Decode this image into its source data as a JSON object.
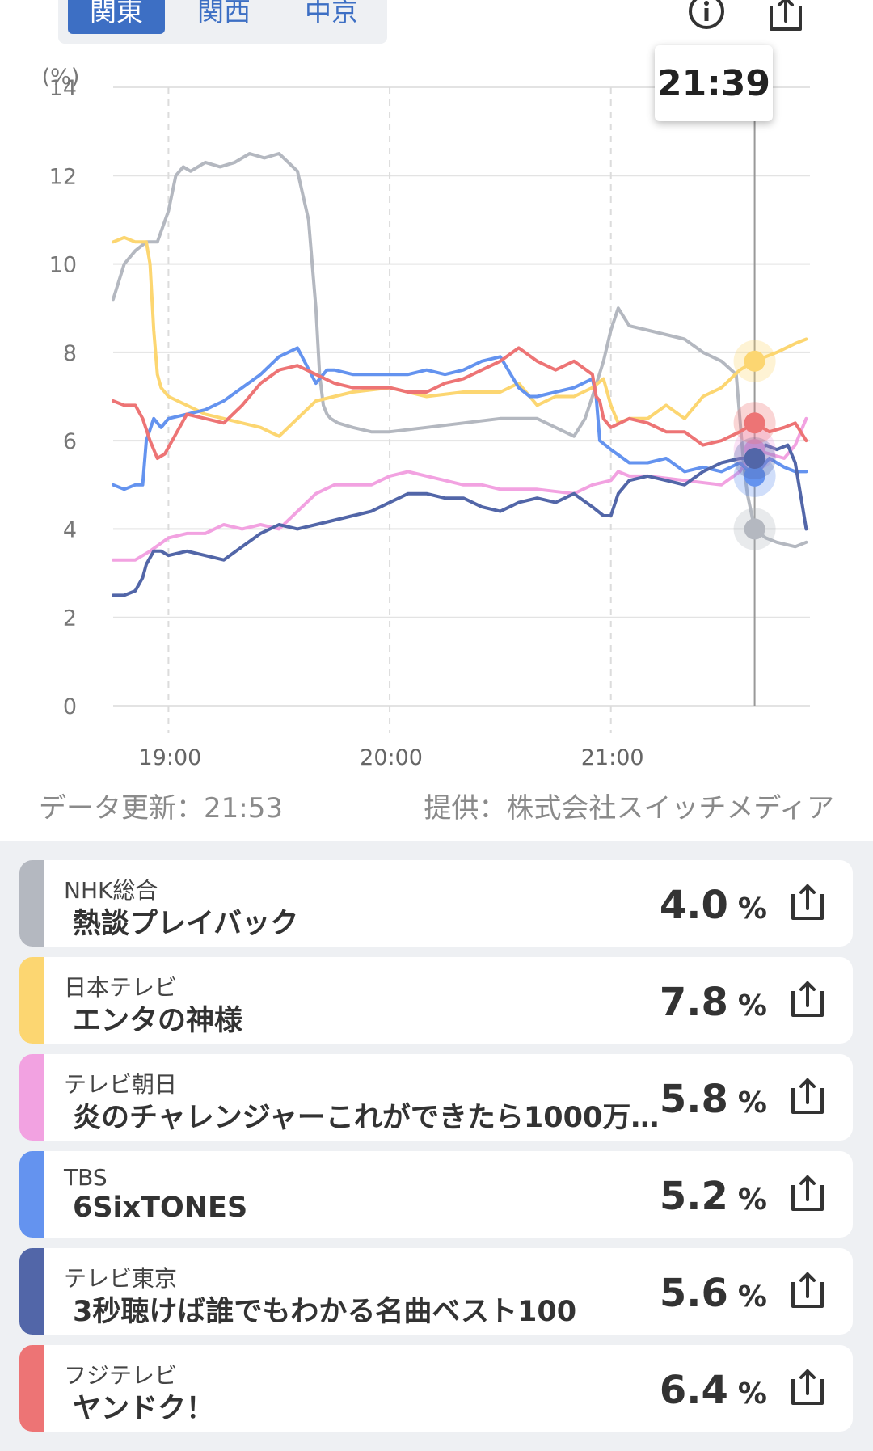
{
  "region_tabs": [
    {
      "label": "関東",
      "active": true
    },
    {
      "label": "関西",
      "active": false
    },
    {
      "label": "中京",
      "active": false
    }
  ],
  "icons": {
    "info": "info-icon",
    "share": "share-icon"
  },
  "tooltip_time": "21:39",
  "footer": {
    "updated": "データ更新：21:53",
    "provider": "提供：株式会社スイッチメディア"
  },
  "chart_data": {
    "type": "line",
    "ylabel": "(%)",
    "ylim": [
      0,
      14
    ],
    "y_ticks": [
      "0",
      "2",
      "4",
      "6",
      "8",
      "10",
      "12",
      "14"
    ],
    "x_tick_labels": [
      "19:00",
      "20:00",
      "21:00"
    ],
    "x_range_minutes": [
      1125,
      1314
    ],
    "x_tick_minutes": [
      1140,
      1200,
      1260
    ],
    "cursor_minute": 1299,
    "grid": true,
    "series": [
      {
        "name": "NHK総合",
        "color": "#b4b8c0",
        "x": [
          1125,
          1128,
          1131,
          1134,
          1137,
          1140,
          1142,
          1144,
          1146,
          1148,
          1150,
          1154,
          1158,
          1162,
          1166,
          1170,
          1175,
          1178,
          1180,
          1181,
          1182,
          1183,
          1184,
          1186,
          1190,
          1195,
          1200,
          1210,
          1220,
          1230,
          1240,
          1245,
          1250,
          1253,
          1255,
          1258,
          1260,
          1262,
          1265,
          1270,
          1275,
          1280,
          1285,
          1290,
          1294,
          1296,
          1297,
          1299,
          1302,
          1305,
          1310,
          1313
        ],
        "y": [
          9.2,
          10.0,
          10.3,
          10.5,
          10.5,
          11.2,
          12.0,
          12.2,
          12.1,
          12.2,
          12.3,
          12.2,
          12.3,
          12.5,
          12.4,
          12.5,
          12.1,
          11.0,
          9.0,
          7.5,
          6.8,
          6.6,
          6.5,
          6.4,
          6.3,
          6.2,
          6.2,
          6.3,
          6.4,
          6.5,
          6.5,
          6.3,
          6.1,
          6.5,
          7.0,
          7.8,
          8.5,
          9.0,
          8.6,
          8.5,
          8.4,
          8.3,
          8.0,
          7.8,
          7.5,
          5.5,
          4.8,
          4.0,
          3.8,
          3.7,
          3.6,
          3.7
        ]
      },
      {
        "name": "日本テレビ",
        "color": "#fcd671",
        "x": [
          1125,
          1128,
          1131,
          1134,
          1135,
          1136,
          1137,
          1138,
          1140,
          1145,
          1150,
          1155,
          1160,
          1165,
          1170,
          1175,
          1180,
          1185,
          1190,
          1200,
          1210,
          1220,
          1230,
          1235,
          1240,
          1245,
          1250,
          1255,
          1258,
          1260,
          1262,
          1265,
          1270,
          1275,
          1280,
          1285,
          1290,
          1295,
          1299,
          1302,
          1305,
          1310,
          1313
        ],
        "y": [
          10.5,
          10.6,
          10.5,
          10.5,
          10.0,
          8.5,
          7.5,
          7.2,
          7.0,
          6.8,
          6.6,
          6.5,
          6.4,
          6.3,
          6.1,
          6.5,
          6.9,
          7.0,
          7.1,
          7.2,
          7.0,
          7.1,
          7.1,
          7.3,
          6.8,
          7.0,
          7.0,
          7.2,
          7.4,
          6.8,
          6.4,
          6.5,
          6.5,
          6.8,
          6.5,
          7.0,
          7.2,
          7.6,
          7.8,
          7.9,
          8.0,
          8.2,
          8.3
        ]
      },
      {
        "name": "テレビ朝日",
        "color": "#f2a2e1",
        "x": [
          1125,
          1128,
          1131,
          1135,
          1140,
          1145,
          1150,
          1155,
          1160,
          1165,
          1170,
          1175,
          1180,
          1185,
          1190,
          1195,
          1200,
          1205,
          1210,
          1215,
          1220,
          1225,
          1230,
          1240,
          1250,
          1255,
          1260,
          1262,
          1265,
          1270,
          1280,
          1290,
          1295,
          1299,
          1303,
          1307,
          1310,
          1313
        ],
        "y": [
          3.3,
          3.3,
          3.3,
          3.5,
          3.8,
          3.9,
          3.9,
          4.1,
          4.0,
          4.1,
          4.0,
          4.4,
          4.8,
          5.0,
          5.0,
          5.0,
          5.2,
          5.3,
          5.2,
          5.1,
          5.0,
          5.0,
          4.9,
          4.9,
          4.8,
          5.0,
          5.1,
          5.3,
          5.2,
          5.2,
          5.1,
          5.0,
          5.3,
          5.8,
          5.7,
          5.6,
          5.9,
          6.5
        ]
      },
      {
        "name": "TBS",
        "color": "#6493ef",
        "x": [
          1125,
          1128,
          1131,
          1133,
          1134,
          1136,
          1138,
          1140,
          1145,
          1150,
          1155,
          1160,
          1165,
          1170,
          1175,
          1180,
          1183,
          1185,
          1190,
          1195,
          1200,
          1205,
          1210,
          1215,
          1220,
          1225,
          1230,
          1235,
          1238,
          1240,
          1245,
          1250,
          1255,
          1256,
          1257,
          1260,
          1265,
          1270,
          1275,
          1280,
          1285,
          1290,
          1295,
          1299,
          1303,
          1307,
          1310,
          1313
        ],
        "y": [
          5.0,
          4.9,
          5.0,
          5.0,
          6.0,
          6.5,
          6.3,
          6.5,
          6.6,
          6.7,
          6.9,
          7.2,
          7.5,
          7.9,
          8.1,
          7.3,
          7.6,
          7.6,
          7.5,
          7.5,
          7.5,
          7.5,
          7.6,
          7.5,
          7.6,
          7.8,
          7.9,
          7.2,
          7.0,
          7.0,
          7.1,
          7.2,
          7.4,
          7.0,
          6.0,
          5.8,
          5.5,
          5.5,
          5.6,
          5.3,
          5.4,
          5.3,
          5.5,
          5.2,
          5.6,
          5.4,
          5.3,
          5.3
        ]
      },
      {
        "name": "テレビ東京",
        "color": "#5266a8",
        "x": [
          1125,
          1128,
          1131,
          1133,
          1134,
          1136,
          1138,
          1140,
          1145,
          1150,
          1155,
          1160,
          1165,
          1170,
          1175,
          1180,
          1185,
          1190,
          1195,
          1200,
          1205,
          1210,
          1215,
          1220,
          1225,
          1230,
          1235,
          1240,
          1245,
          1250,
          1255,
          1258,
          1260,
          1262,
          1265,
          1270,
          1275,
          1280,
          1285,
          1290,
          1295,
          1299,
          1302,
          1305,
          1308,
          1310,
          1312,
          1313
        ],
        "y": [
          2.5,
          2.5,
          2.6,
          2.9,
          3.2,
          3.5,
          3.5,
          3.4,
          3.5,
          3.4,
          3.3,
          3.6,
          3.9,
          4.1,
          4.0,
          4.1,
          4.2,
          4.3,
          4.4,
          4.6,
          4.8,
          4.8,
          4.7,
          4.7,
          4.5,
          4.4,
          4.6,
          4.7,
          4.6,
          4.8,
          4.5,
          4.3,
          4.3,
          4.8,
          5.1,
          5.2,
          5.1,
          5.0,
          5.3,
          5.5,
          5.6,
          5.6,
          5.9,
          5.8,
          5.9,
          5.5,
          4.5,
          4.0
        ]
      },
      {
        "name": "フジテレビ",
        "color": "#ed7475",
        "x": [
          1125,
          1128,
          1131,
          1133,
          1135,
          1137,
          1139,
          1141,
          1143,
          1145,
          1150,
          1155,
          1160,
          1165,
          1170,
          1175,
          1180,
          1185,
          1190,
          1195,
          1200,
          1205,
          1210,
          1215,
          1220,
          1225,
          1230,
          1235,
          1240,
          1245,
          1250,
          1255,
          1256,
          1257,
          1258,
          1260,
          1265,
          1270,
          1275,
          1280,
          1285,
          1290,
          1295,
          1299,
          1303,
          1307,
          1310,
          1313
        ],
        "y": [
          6.9,
          6.8,
          6.8,
          6.5,
          6.0,
          5.6,
          5.7,
          6.0,
          6.3,
          6.6,
          6.5,
          6.4,
          6.8,
          7.3,
          7.6,
          7.7,
          7.5,
          7.3,
          7.2,
          7.2,
          7.2,
          7.1,
          7.1,
          7.3,
          7.4,
          7.6,
          7.8,
          8.1,
          7.8,
          7.6,
          7.8,
          7.5,
          7.0,
          6.9,
          6.5,
          6.3,
          6.5,
          6.4,
          6.2,
          6.2,
          5.9,
          6.0,
          6.2,
          6.4,
          6.2,
          6.3,
          6.4,
          6.0
        ]
      }
    ]
  },
  "channels": [
    {
      "station": "NHK総合",
      "program": "熱談プレイバック",
      "rating": "4.0",
      "unit": "%",
      "color": "#b4b8c0"
    },
    {
      "station": "日本テレビ",
      "program": "エンタの神様",
      "rating": "7.8",
      "unit": "%",
      "color": "#fcd671"
    },
    {
      "station": "テレビ朝日",
      "program": "炎のチャレンジャーこれができたら1000万…",
      "rating": "5.8",
      "unit": "%",
      "color": "#f2a2e1"
    },
    {
      "station": "TBS",
      "program": "6SixTONES",
      "rating": "5.2",
      "unit": "%",
      "color": "#6493ef"
    },
    {
      "station": "テレビ東京",
      "program": "3秒聴けば誰でもわかる名曲ベスト100",
      "rating": "5.6",
      "unit": "%",
      "color": "#5266a8"
    },
    {
      "station": "フジテレビ",
      "program": "ヤンドク！",
      "rating": "6.4",
      "unit": "%",
      "color": "#ed7475"
    }
  ]
}
